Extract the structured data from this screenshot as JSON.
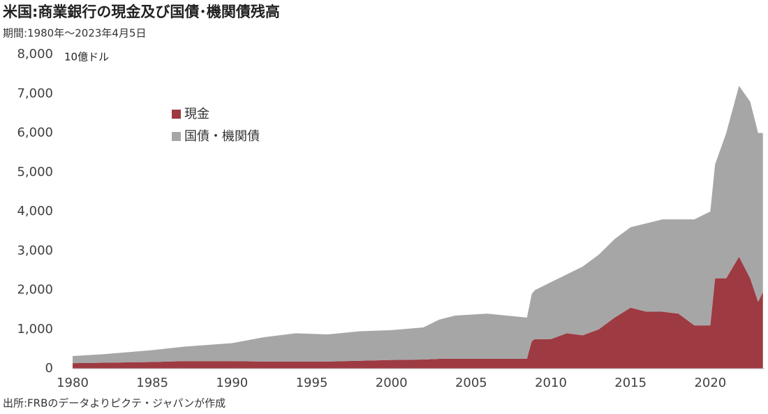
{
  "chart_data": {
    "type": "stacked_area",
    "title": "米国:商業銀行の現金及び国債･機関債残高",
    "subtitle": "期間:1980年～2023年4月5日",
    "y_label": "10億ドル",
    "source": "出所:FRBのデータよりピクテ・ジャパンが作成",
    "x": [
      1980,
      1982,
      1985,
      1987,
      1990,
      1992,
      1994,
      1996,
      1998,
      2000,
      2002,
      2003,
      2004,
      2006,
      2008.5,
      2008.8,
      2009,
      2010,
      2011,
      2012,
      2013,
      2014,
      2015,
      2016,
      2017,
      2018,
      2019,
      2020,
      2020.3,
      2021,
      2021.8,
      2022.5,
      2023,
      2023.3
    ],
    "series": [
      {
        "name": "現金",
        "color": "#9e3a42",
        "values": [
          140,
          150,
          170,
          190,
          190,
          180,
          180,
          180,
          200,
          220,
          230,
          250,
          250,
          250,
          250,
          700,
          750,
          750,
          900,
          850,
          1000,
          1300,
          1550,
          1450,
          1450,
          1400,
          1100,
          1100,
          2300,
          2300,
          2850,
          2300,
          1700,
          1950
        ]
      },
      {
        "name": "国債・機関債",
        "color": "#a6a6a6",
        "values": [
          180,
          220,
          300,
          370,
          460,
          620,
          720,
          690,
          750,
          760,
          820,
          1000,
          1100,
          1150,
          1050,
          1200,
          1250,
          1450,
          1500,
          1750,
          1900,
          2000,
          2050,
          2250,
          2350,
          2400,
          2700,
          2900,
          2900,
          3700,
          4350,
          4500,
          4300,
          4050
        ]
      }
    ],
    "xlim": [
      1980,
      2023.4
    ],
    "xticks": [
      1980,
      1985,
      1990,
      1995,
      2000,
      2005,
      2010,
      2015,
      2020
    ],
    "ylim": [
      0,
      8000
    ],
    "yticks": [
      0,
      {
        "value": 1000,
        "label": "1,000"
      },
      {
        "value": 2000,
        "label": "2,000"
      },
      {
        "value": 3000,
        "label": "3,000"
      },
      {
        "value": 4000,
        "label": "4,000"
      },
      {
        "value": 5000,
        "label": "5,000"
      },
      {
        "value": 6000,
        "label": "6,000"
      },
      {
        "value": 7000,
        "label": "7,000"
      },
      {
        "value": 8000,
        "label": "8,000"
      }
    ],
    "legend": "upper-left",
    "grid": false
  }
}
